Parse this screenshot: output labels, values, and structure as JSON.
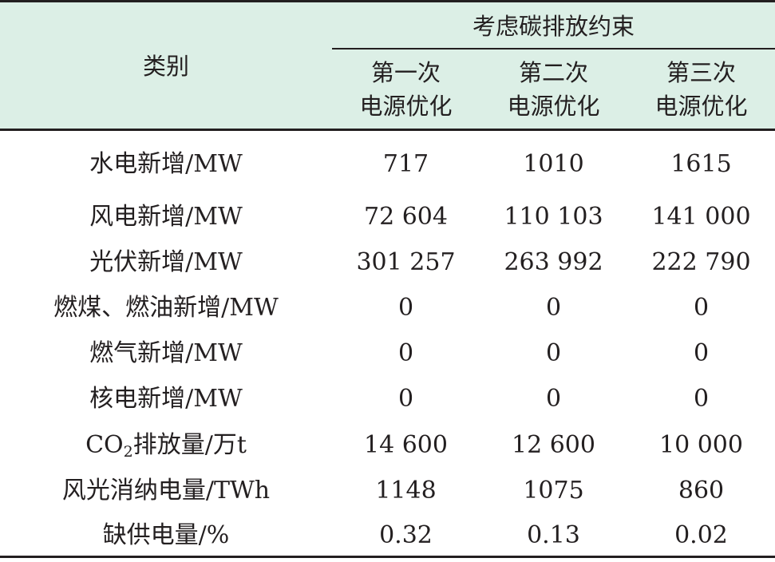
{
  "table": {
    "category_header": "类别",
    "group_header": "考虑碳排放约束",
    "columns": [
      {
        "line1": "第一次",
        "line2": "电源优化"
      },
      {
        "line1": "第二次",
        "line2": "电源优化"
      },
      {
        "line1": "第三次",
        "line2": "电源优化"
      }
    ],
    "rows": [
      {
        "label": "水电新增/MW",
        "values": [
          "717",
          "1010",
          "1615"
        ]
      },
      {
        "label": "风电新增/MW",
        "values": [
          "72 604",
          "110 103",
          "141 000"
        ]
      },
      {
        "label": "光伏新增/MW",
        "values": [
          "301 257",
          "263 992",
          "222 790"
        ]
      },
      {
        "label": "燃煤、燃油新增/MW",
        "values": [
          "0",
          "0",
          "0"
        ]
      },
      {
        "label": "燃气新增/MW",
        "values": [
          "0",
          "0",
          "0"
        ]
      },
      {
        "label": "核电新增/MW",
        "values": [
          "0",
          "0",
          "0"
        ]
      },
      {
        "label_pre": "CO",
        "label_sub": "2",
        "label_post": "排放量/万t",
        "values": [
          "14 600",
          "12 600",
          "10 000"
        ]
      },
      {
        "label": "风光消纳电量/TWh",
        "values": [
          "1148",
          "1075",
          "860"
        ]
      },
      {
        "label": "缺供电量/%",
        "values": [
          "0.32",
          "0.13",
          "0.02"
        ]
      }
    ]
  }
}
